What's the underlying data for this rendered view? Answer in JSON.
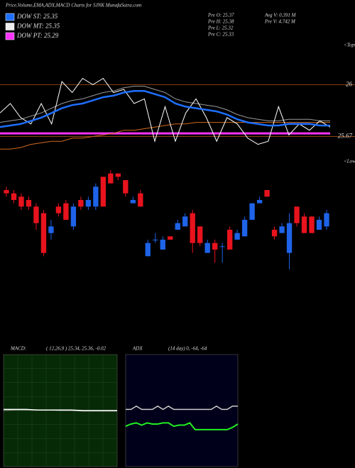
{
  "header": {
    "title": "Price,Volume,EMA,ADX,MACD Charts for SJNK MunafaSutra.com",
    "legend": [
      {
        "label": "DOW ST: 25.35",
        "color": "#1e6fff"
      },
      {
        "label": "DOW MT: 25.35",
        "color": "#eeeeee"
      },
      {
        "label": "DOW PT: 25.29",
        "color": "#ff33ff"
      }
    ],
    "info": [
      "Pre  O: 25.37",
      "Pre  H: 25.38",
      "Pre  L: 25.32",
      "Pre  C: 25.33"
    ],
    "volume": [
      "Avg V: 0.391 M",
      "Pre  V: 4.742 M"
    ],
    "tops": "<Tops",
    "lows": "<Lows"
  },
  "chart_data": [
    {
      "type": "line",
      "ylim": [
        25.51,
        26.25
      ],
      "yticks": [
        26,
        25.67
      ],
      "grid": true,
      "grid_color": "#8b4513",
      "hlines": [
        {
          "value": 25.69,
          "color": "#ff33ff"
        }
      ],
      "series": [
        {
          "color": "#999999",
          "width": 1,
          "values": [
            25.76,
            25.77,
            25.78,
            25.8,
            25.82,
            25.85,
            25.88,
            25.9,
            25.91,
            25.93,
            25.95,
            25.96,
            25.98,
            25.99,
            25.99,
            25.97,
            25.95,
            25.91,
            25.89,
            25.88,
            25.87,
            25.86,
            25.84,
            25.81,
            25.79,
            25.78,
            25.77,
            25.77,
            25.78,
            25.78,
            25.78,
            25.77,
            25.77
          ]
        },
        {
          "color": "#d2691e",
          "width": 1,
          "values": [
            25.59,
            25.59,
            25.6,
            25.62,
            25.63,
            25.64,
            25.64,
            25.66,
            25.66,
            25.67,
            25.68,
            25.69,
            25.71,
            25.71,
            25.72,
            25.73,
            25.74,
            25.75,
            25.75,
            25.76,
            25.76,
            25.76,
            25.76,
            25.76,
            25.76,
            25.76,
            25.76,
            25.76,
            25.76,
            25.76,
            25.76,
            25.76,
            25.76
          ]
        },
        {
          "color": "#ffffff",
          "width": 1,
          "values": [
            25.82,
            25.88,
            25.79,
            25.75,
            25.88,
            25.75,
            26.02,
            25.95,
            26.04,
            26,
            26.04,
            25.95,
            25.97,
            25.88,
            25.91,
            25.64,
            25.86,
            25.64,
            25.82,
            25.91,
            25.79,
            25.64,
            25.79,
            25.75,
            25.66,
            25.62,
            25.64,
            25.86,
            25.68,
            25.75,
            25.71,
            25.77,
            25.73
          ]
        },
        {
          "color": "#1e6fff",
          "width": 2.5,
          "values": [
            25.73,
            25.74,
            25.75,
            25.77,
            25.79,
            25.82,
            25.85,
            25.87,
            25.88,
            25.9,
            25.92,
            25.93,
            25.95,
            25.96,
            25.96,
            25.94,
            25.92,
            25.88,
            25.86,
            25.85,
            25.84,
            25.83,
            25.81,
            25.78,
            25.76,
            25.75,
            25.74,
            25.74,
            25.75,
            25.75,
            25.75,
            25.74,
            25.74
          ]
        }
      ]
    },
    {
      "type": "candlestick",
      "ylim": [
        25.2,
        25.5
      ],
      "up_color": "#e8131d",
      "down_color": "#1e63e8",
      "open": [
        25.43,
        25.41,
        25.39,
        25.39,
        25.34,
        25.25,
        25.33,
        25.37,
        25.35,
        25.39,
        25.39,
        25.41,
        25.45,
        25.39,
        25.46,
        25.48,
        25.43,
        25.41,
        25.39,
        25.28,
        25.29,
        25.29,
        25.29,
        25.34,
        25.36,
        25.28,
        25.28,
        25.28,
        25.26,
        25.27,
        25.26,
        25.31,
        25.35,
        25.4,
        25.41,
        25.42,
        25.3,
        25.33,
        25.34,
        25.34,
        25.31,
        25.31,
        25.35,
        25.37
      ],
      "high": [
        25.45,
        25.44,
        25.43,
        25.42,
        25.4,
        25.38,
        25.35,
        25.4,
        25.41,
        25.4,
        25.42,
        25.42,
        25.46,
        25.48,
        25.5,
        25.49,
        25.47,
        25.42,
        25.44,
        25.29,
        25.31,
        25.3,
        25.3,
        25.35,
        25.37,
        25.38,
        25.33,
        25.29,
        25.29,
        25.28,
        25.33,
        25.32,
        25.36,
        25.4,
        25.42,
        25.44,
        25.33,
        25.34,
        25.37,
        25.39,
        25.37,
        25.36,
        25.36,
        25.38
      ],
      "low": [
        25.42,
        25.4,
        25.38,
        25.38,
        25.32,
        25.24,
        25.29,
        25.36,
        25.35,
        25.32,
        25.38,
        25.38,
        25.38,
        25.39,
        25.46,
        25.47,
        25.42,
        25.4,
        25.39,
        25.24,
        25.28,
        25.26,
        25.29,
        25.32,
        25.33,
        25.25,
        25.27,
        25.25,
        25.22,
        25.22,
        25.26,
        25.29,
        25.3,
        25.35,
        25.4,
        25.42,
        25.29,
        25.31,
        25.2,
        25.33,
        25.31,
        25.31,
        25.32,
        25.32
      ],
      "close": [
        25.44,
        25.43,
        25.42,
        25.41,
        25.39,
        25.37,
        25.31,
        25.39,
        25.4,
        25.33,
        25.41,
        25.39,
        25.39,
        25.48,
        25.49,
        25.49,
        25.47,
        25.4,
        25.43,
        25.24,
        25.29,
        25.26,
        25.3,
        25.32,
        25.33,
        25.37,
        25.33,
        25.25,
        25.28,
        25.27,
        25.32,
        25.29,
        25.3,
        25.35,
        25.4,
        25.44,
        25.32,
        25.31,
        25.25,
        25.39,
        25.36,
        25.36,
        25.32,
        25.33
      ]
    },
    {
      "type": "line",
      "title": "MACD:",
      "subtitle": "( 12,26,9 ) 25.34, 25.36, -0.02",
      "ylim": [
        -1,
        1
      ],
      "background": "#062a06",
      "grid": true,
      "grid_color": "#1c4a1c",
      "series": [
        {
          "color": "#888888",
          "width": 1,
          "values": [
            0.0,
            0.01,
            0.01,
            0.01,
            0.01,
            0.0,
            0.0,
            -0.01,
            -0.01,
            -0.01,
            -0.01
          ]
        },
        {
          "color": "#ffffff",
          "width": 1.5,
          "values": [
            0.02,
            0.02,
            0.02,
            0.01,
            0.01,
            0.01,
            0.01,
            0.0,
            0.0,
            0.0,
            0.0
          ]
        }
      ]
    },
    {
      "type": "line",
      "title": "ADX",
      "subtitle": "(14 day) 0, -64, -64",
      "ylim": [
        0,
        100
      ],
      "background": "#00001a",
      "grid": false,
      "series": [
        {
          "color": "#cccccc",
          "width": 1.5,
          "values": [
            51,
            51,
            54,
            51,
            51,
            51,
            54,
            51,
            54,
            51,
            51,
            51,
            51,
            51,
            51,
            51,
            51,
            54,
            51,
            51,
            54,
            54
          ]
        },
        {
          "color": "#22ee22",
          "width": 2,
          "values": [
            36,
            38,
            39,
            37,
            39,
            38,
            38,
            39,
            39,
            36,
            37,
            37,
            39,
            33,
            33,
            33,
            33,
            33,
            33,
            33,
            35,
            38
          ]
        }
      ]
    }
  ]
}
